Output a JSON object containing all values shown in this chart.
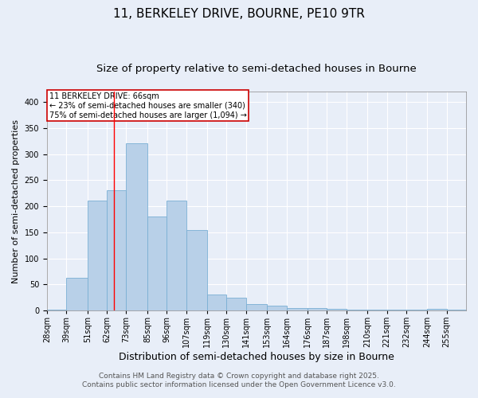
{
  "title1": "11, BERKELEY DRIVE, BOURNE, PE10 9TR",
  "title2": "Size of property relative to semi-detached houses in Bourne",
  "xlabel": "Distribution of semi-detached houses by size in Bourne",
  "ylabel": "Number of semi-detached properties",
  "bin_labels": [
    "28sqm",
    "39sqm",
    "51sqm",
    "62sqm",
    "73sqm",
    "85sqm",
    "96sqm",
    "107sqm",
    "119sqm",
    "130sqm",
    "141sqm",
    "153sqm",
    "164sqm",
    "176sqm",
    "187sqm",
    "198sqm",
    "210sqm",
    "221sqm",
    "232sqm",
    "244sqm",
    "255sqm"
  ],
  "bin_edges": [
    28,
    39,
    51,
    62,
    73,
    85,
    96,
    107,
    119,
    130,
    141,
    153,
    164,
    176,
    187,
    198,
    210,
    221,
    232,
    244,
    255,
    266
  ],
  "bar_values": [
    2,
    62,
    210,
    230,
    320,
    180,
    210,
    155,
    30,
    25,
    12,
    9,
    5,
    4,
    3,
    2,
    1,
    1,
    1,
    3,
    2
  ],
  "bar_color": "#b8d0e8",
  "bar_edge_color": "#7aafd4",
  "red_line_x": 66,
  "annotation_title": "11 BERKELEY DRIVE: 66sqm",
  "annotation_line1": "← 23% of semi-detached houses are smaller (340)",
  "annotation_line2": "75% of semi-detached houses are larger (1,094) →",
  "annotation_box_color": "#ffffff",
  "annotation_border_color": "#cc0000",
  "footer1": "Contains HM Land Registry data © Crown copyright and database right 2025.",
  "footer2": "Contains public sector information licensed under the Open Government Licence v3.0.",
  "ylim": [
    0,
    420
  ],
  "background_color": "#e8eef8",
  "plot_background": "#e8eef8",
  "grid_color": "#ffffff",
  "title1_fontsize": 11,
  "title2_fontsize": 9.5,
  "xlabel_fontsize": 9,
  "ylabel_fontsize": 8,
  "tick_fontsize": 7,
  "footer_fontsize": 6.5,
  "annotation_fontsize": 7
}
